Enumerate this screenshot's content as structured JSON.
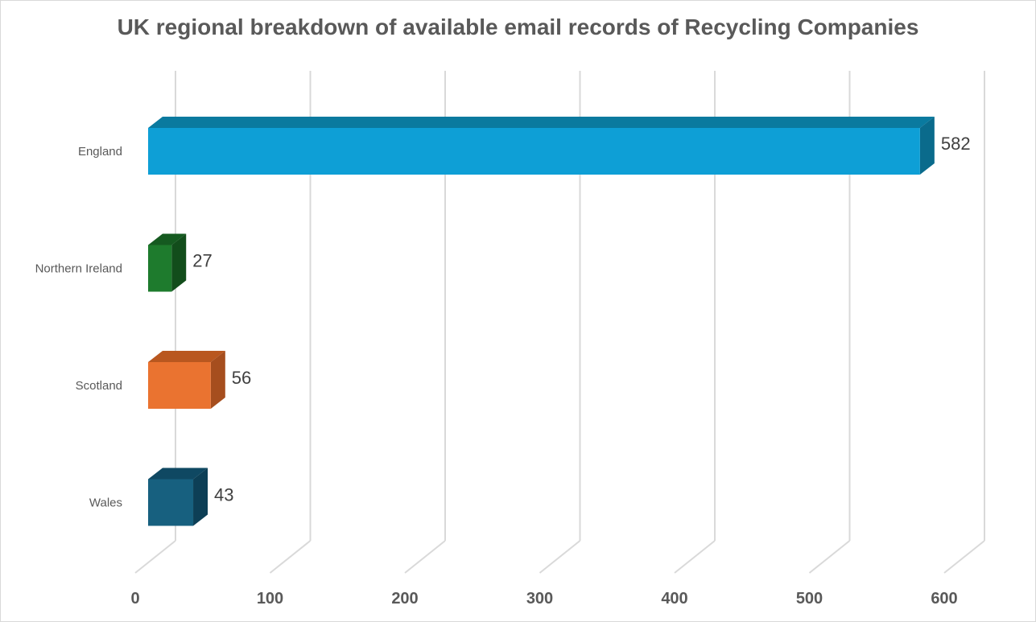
{
  "chart_data": {
    "type": "bar",
    "orientation": "horizontal",
    "style": "3d",
    "title": "UK regional breakdown of available email records of Recycling Companies",
    "categories": [
      "England",
      "Northern Ireland",
      "Scotland",
      "Wales"
    ],
    "values": [
      582,
      27,
      56,
      43
    ],
    "data_labels": [
      "582",
      "27",
      "56",
      "43"
    ],
    "xlim": [
      0,
      600
    ],
    "xticks": [
      "0",
      "100",
      "200",
      "300",
      "400",
      "500",
      "600"
    ],
    "grid": true,
    "legend": "none",
    "colors": [
      "#0e9fd6",
      "#1e7b2d",
      "#ea7330",
      "#17607f"
    ],
    "top_colors": [
      "#0a7a9f",
      "#155a20",
      "#b9571f",
      "#0f4862"
    ],
    "side_colors": [
      "#0a6b8c",
      "#124d1b",
      "#a64e1e",
      "#0d3f56"
    ]
  }
}
